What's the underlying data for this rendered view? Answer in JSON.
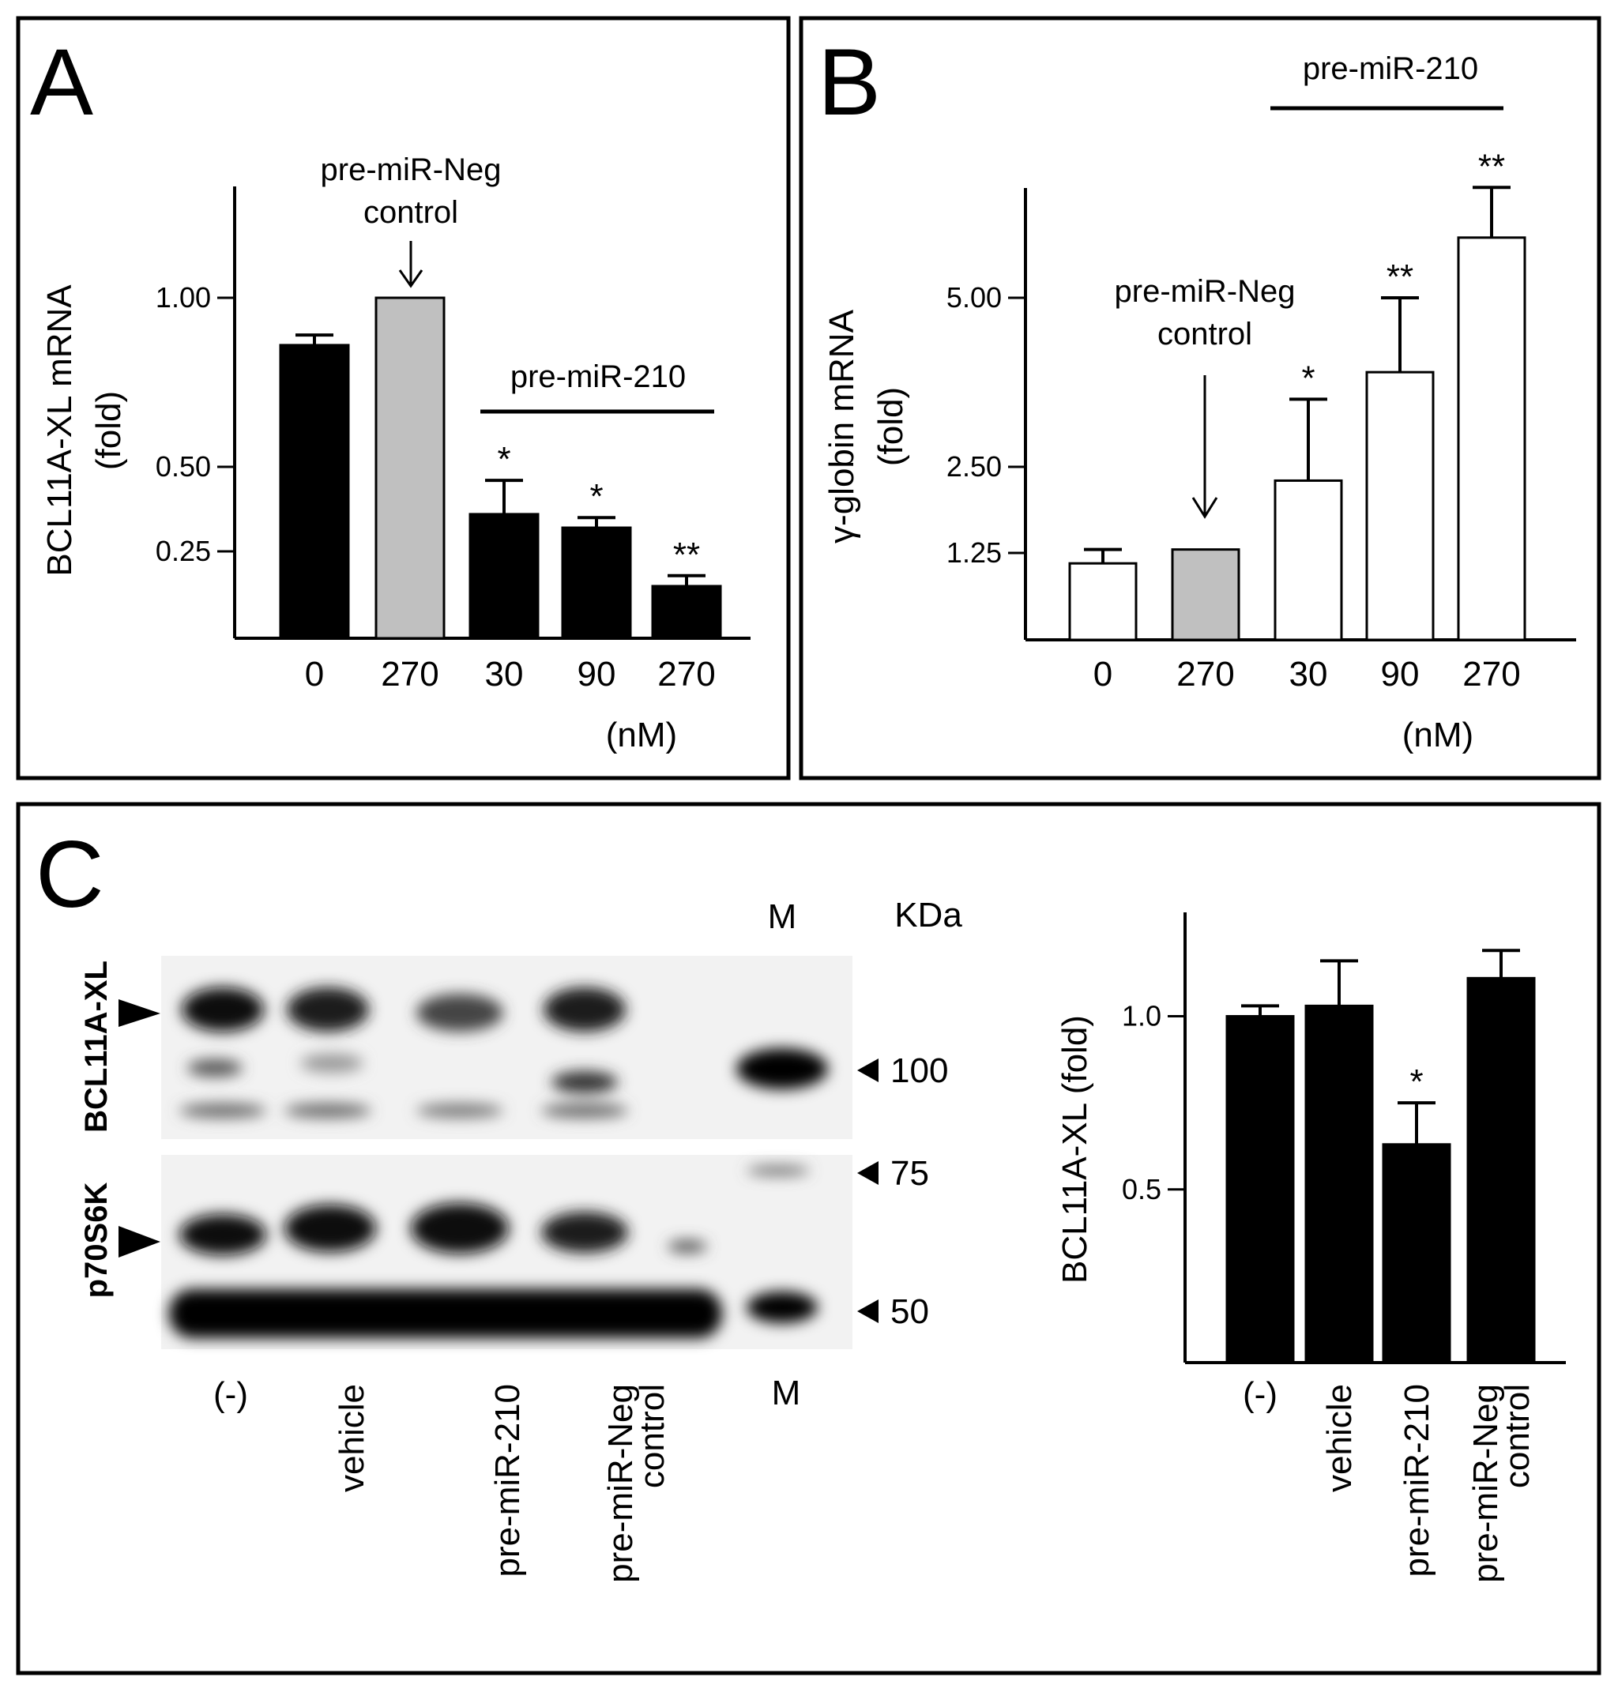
{
  "colors": {
    "black": "#000000",
    "gray": "#c0c0c0",
    "white": "#ffffff"
  },
  "panels": {
    "A": {
      "letter": "A"
    },
    "B": {
      "letter": "B"
    },
    "C": {
      "letter": "C"
    }
  },
  "chart_data": [
    {
      "id": "A",
      "type": "bar",
      "ylabel": [
        "BCL11A-XL mRNA",
        "(fold)"
      ],
      "y_ticks": [
        0.25,
        0.5,
        1.0
      ],
      "y_tick_labels": [
        "0.25",
        "0.50",
        "1.00"
      ],
      "categories": [
        "0",
        "270",
        "30",
        "90",
        "270"
      ],
      "values": [
        0.86,
        1.0,
        0.36,
        0.32,
        0.15
      ],
      "errors": [
        0.03,
        0.0,
        0.1,
        0.03,
        0.03
      ],
      "bar_colors": [
        "#000000",
        "#c0c0c0",
        "#000000",
        "#000000",
        "#000000"
      ],
      "significance": [
        "",
        "",
        "*",
        "*",
        "**"
      ],
      "unit_label": "(nM)",
      "annotations": {
        "neg_control": [
          "pre-miR-Neg",
          "control"
        ],
        "group_label": "pre-miR-210"
      }
    },
    {
      "id": "B",
      "type": "bar",
      "ylabel": [
        "γ-globin mRNA",
        "(fold)"
      ],
      "y_ticks": [
        1.25,
        2.5,
        5.0
      ],
      "y_tick_labels": [
        "1.25",
        "2.50",
        "5.00"
      ],
      "categories": [
        "0",
        "270",
        "30",
        "90",
        "270"
      ],
      "values": [
        1.1,
        1.3,
        2.3,
        3.9,
        5.9
      ],
      "errors": [
        0.2,
        0.0,
        1.2,
        1.1,
        0.75
      ],
      "bar_colors": [
        "#ffffff",
        "#c0c0c0",
        "#ffffff",
        "#ffffff",
        "#ffffff"
      ],
      "significance": [
        "",
        "",
        "*",
        "**",
        "**"
      ],
      "unit_label": "(nM)",
      "annotations": {
        "neg_control": [
          "pre-miR-Neg",
          "control"
        ],
        "group_label": "pre-miR-210"
      }
    },
    {
      "id": "C-bar",
      "type": "bar",
      "ylabel": "BCL11A-XL (fold)",
      "y_ticks": [
        0.5,
        1.0
      ],
      "y_tick_labels": [
        "0.5",
        "1.0"
      ],
      "ylim": [
        0,
        1.3
      ],
      "categories": [
        [
          "(-)"
        ],
        [
          "vehicle"
        ],
        [
          "pre-miR-210"
        ],
        [
          "pre-miR-Neg",
          "control"
        ]
      ],
      "values": [
        1.0,
        1.03,
        0.63,
        1.11
      ],
      "errors": [
        0.03,
        0.13,
        0.12,
        0.08
      ],
      "bar_colors": [
        "#000000",
        "#000000",
        "#000000",
        "#000000"
      ],
      "significance": [
        "",
        "",
        "*",
        ""
      ]
    }
  ],
  "blot": {
    "marker_lane": "M",
    "unit": "KDa",
    "protein_labels": [
      "BCL11A-XL",
      "p70S6K"
    ],
    "mw_markers": [
      "100",
      "75",
      "50"
    ],
    "lanes": [
      [
        "(-)"
      ],
      [
        "vehicle"
      ],
      [
        "pre-miR-210"
      ],
      [
        "pre-miR-Neg",
        "control"
      ],
      [
        "M"
      ]
    ]
  }
}
